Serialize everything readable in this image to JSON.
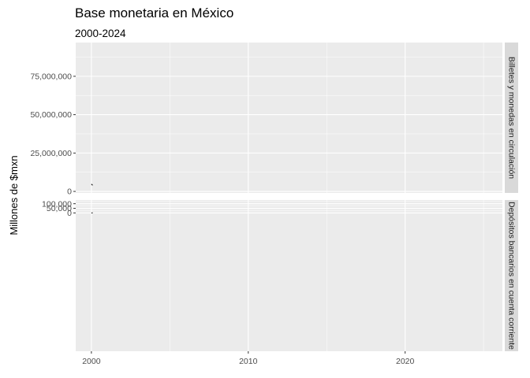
{
  "chart_data": {
    "type": "line",
    "title": "Base monetaria en México",
    "subtitle": "2000-2024",
    "xlabel": "",
    "ylabel": "Millones de $mxn",
    "xlim": [
      1999,
      2026.2
    ],
    "x_ticks": [
      2000,
      2010,
      2020
    ],
    "grid": true,
    "panels": [
      {
        "label": "Billetes y monedas en circulación",
        "ylim": [
          -1000000,
          97000000
        ],
        "y_ticks": [
          0,
          25000000,
          50000000,
          75000000
        ],
        "y_tick_labels": [
          "0",
          "25,000,000",
          "50,000,000",
          "75,000,000"
        ],
        "series": [
          {
            "x": [
              2000.0,
              2000.04,
              2000.08
            ],
            "values": [
              4800000,
              4300000,
              4000000
            ]
          }
        ]
      },
      {
        "label": "Depósitos bancarios en cuenta corriente",
        "ylim": [
          -1500000,
          140000
        ],
        "ylim_note": "",
        "y_ticks": [
          0,
          50000,
          100000
        ],
        "y_tick_labels": [
          "0",
          "50,000",
          "100,000"
        ],
        "series": [
          {
            "x": [
              2000.0,
              2000.04,
              2000.08
            ],
            "values": [
              500,
              300,
              900
            ]
          }
        ]
      }
    ]
  },
  "colors": {
    "panel_bg": "#ebebeb",
    "grid_major": "#ffffff",
    "strip_bg": "#d9d9d9",
    "line": "#000000"
  }
}
